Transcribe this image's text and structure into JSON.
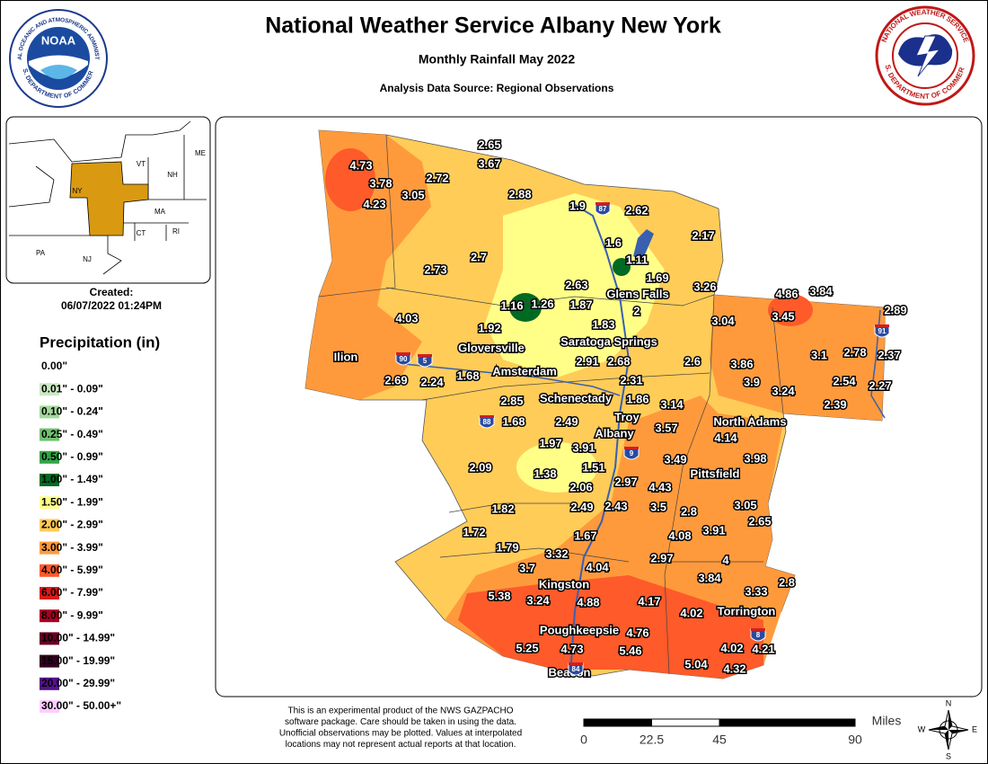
{
  "header": {
    "title": "National Weather Service Albany New York",
    "subtitle": "Monthly Rainfall May 2022",
    "source": "Analysis Data Source: Regional Observations"
  },
  "logos": {
    "noaa": "NOAA",
    "noaa_ring_top": "NATIONAL OCEANIC AND ATMOSPHERIC ADMINISTRATION",
    "noaa_ring_bottom": "U.S. DEPARTMENT OF COMMERCE",
    "nws_ring_top": "NATIONAL WEATHER SERVICE",
    "nws_ring_bottom": "U.S. DEPARTMENT OF COMMERCE"
  },
  "inset": {
    "states": [
      "VT",
      "NH",
      "ME",
      "NY",
      "MA",
      "CT",
      "RI",
      "PA",
      "NJ"
    ]
  },
  "created": {
    "label": "Created:",
    "date": "06/07/2022 01:24PM"
  },
  "legend": {
    "title": "Precipitation (in)",
    "items": [
      {
        "label": "0.00\"",
        "color": "#ffffff"
      },
      {
        "label": "0.01\" - 0.09\"",
        "color": "#cce8c4"
      },
      {
        "label": "0.10\" - 0.24\"",
        "color": "#a4d89c"
      },
      {
        "label": "0.25\" - 0.49\"",
        "color": "#70c270"
      },
      {
        "label": "0.50\" - 0.99\"",
        "color": "#32a446"
      },
      {
        "label": "1.00\" - 1.49\"",
        "color": "#006a22"
      },
      {
        "label": "1.50\" - 1.99\"",
        "color": "#ffff88"
      },
      {
        "label": "2.00\" - 2.99\"",
        "color": "#ffcc58"
      },
      {
        "label": "3.00\" - 3.99\"",
        "color": "#ff9a3c"
      },
      {
        "label": "4.00\" - 5.99\"",
        "color": "#ff5a2a"
      },
      {
        "label": "6.00\" - 7.99\"",
        "color": "#dd1818"
      },
      {
        "label": "8.00\" - 9.99\"",
        "color": "#aa0024"
      },
      {
        "label": "10.00\" - 14.99\"",
        "color": "#660022"
      },
      {
        "label": "15.00\" - 19.99\"",
        "color": "#330022"
      },
      {
        "label": "20.00\" - 29.99\"",
        "color": "#55108a"
      },
      {
        "label": "30.00\" - 50.00+\"",
        "color": "#ffccff"
      }
    ]
  },
  "cities": [
    "Glens Falls",
    "Gloversville",
    "Saratoga Springs",
    "Ilion",
    "Amsterdam",
    "Schenectady",
    "Troy",
    "Albany",
    "North Adams",
    "Pittsfield",
    "Kingston",
    "Torrington",
    "Poughkeepsie",
    "Beacon"
  ],
  "highways": [
    87,
    90,
    5,
    88,
    9,
    84,
    91,
    8
  ],
  "observations": [
    4.73,
    3.78,
    4.23,
    3.05,
    2.72,
    2.65,
    3.67,
    2.88,
    1.9,
    2.62,
    2.17,
    1.6,
    1.11,
    1.69,
    2.73,
    2.7,
    2.63,
    3.26,
    4.03,
    1.16,
    1.26,
    1.87,
    2,
    1.92,
    1.83,
    3.04,
    4.86,
    3.84,
    3.45,
    2.89,
    3.1,
    2.78,
    2.37,
    3.86,
    3.9,
    3.24,
    2.54,
    2.27,
    2.39,
    2.91,
    2.68,
    2.6,
    2.69,
    2.24,
    1.68,
    2.31,
    2.85,
    1.86,
    3.14,
    1.68,
    2.49,
    3.57,
    4.14,
    1.97,
    3.91,
    3.98,
    3.49,
    2.09,
    1.38,
    1.51,
    2.06,
    2.97,
    4.43,
    3.05,
    2.65,
    1.82,
    2.49,
    2.43,
    3.5,
    2.8,
    3.91,
    1.72,
    1.67,
    4.08,
    1.79,
    3.32,
    2.97,
    4,
    3.7,
    4.04,
    3.84,
    2.8,
    3.33,
    5.38,
    3.24,
    4.88,
    4.17,
    4.02,
    4.76,
    5.25,
    4.73,
    5.46,
    4.02,
    4.21,
    5.04,
    4.32
  ],
  "disclaimer": [
    "This is an experimental product of the NWS GAZPACHO",
    "software package. Care should be taken in using the data.",
    "Unofficial observations may be plotted. Values at interpolated",
    "locations may not represent actual reports at that location."
  ],
  "scale": {
    "unit": "Miles",
    "ticks": [
      0,
      22.5,
      45,
      90
    ]
  },
  "compass": [
    "N",
    "E",
    "S",
    "W"
  ]
}
